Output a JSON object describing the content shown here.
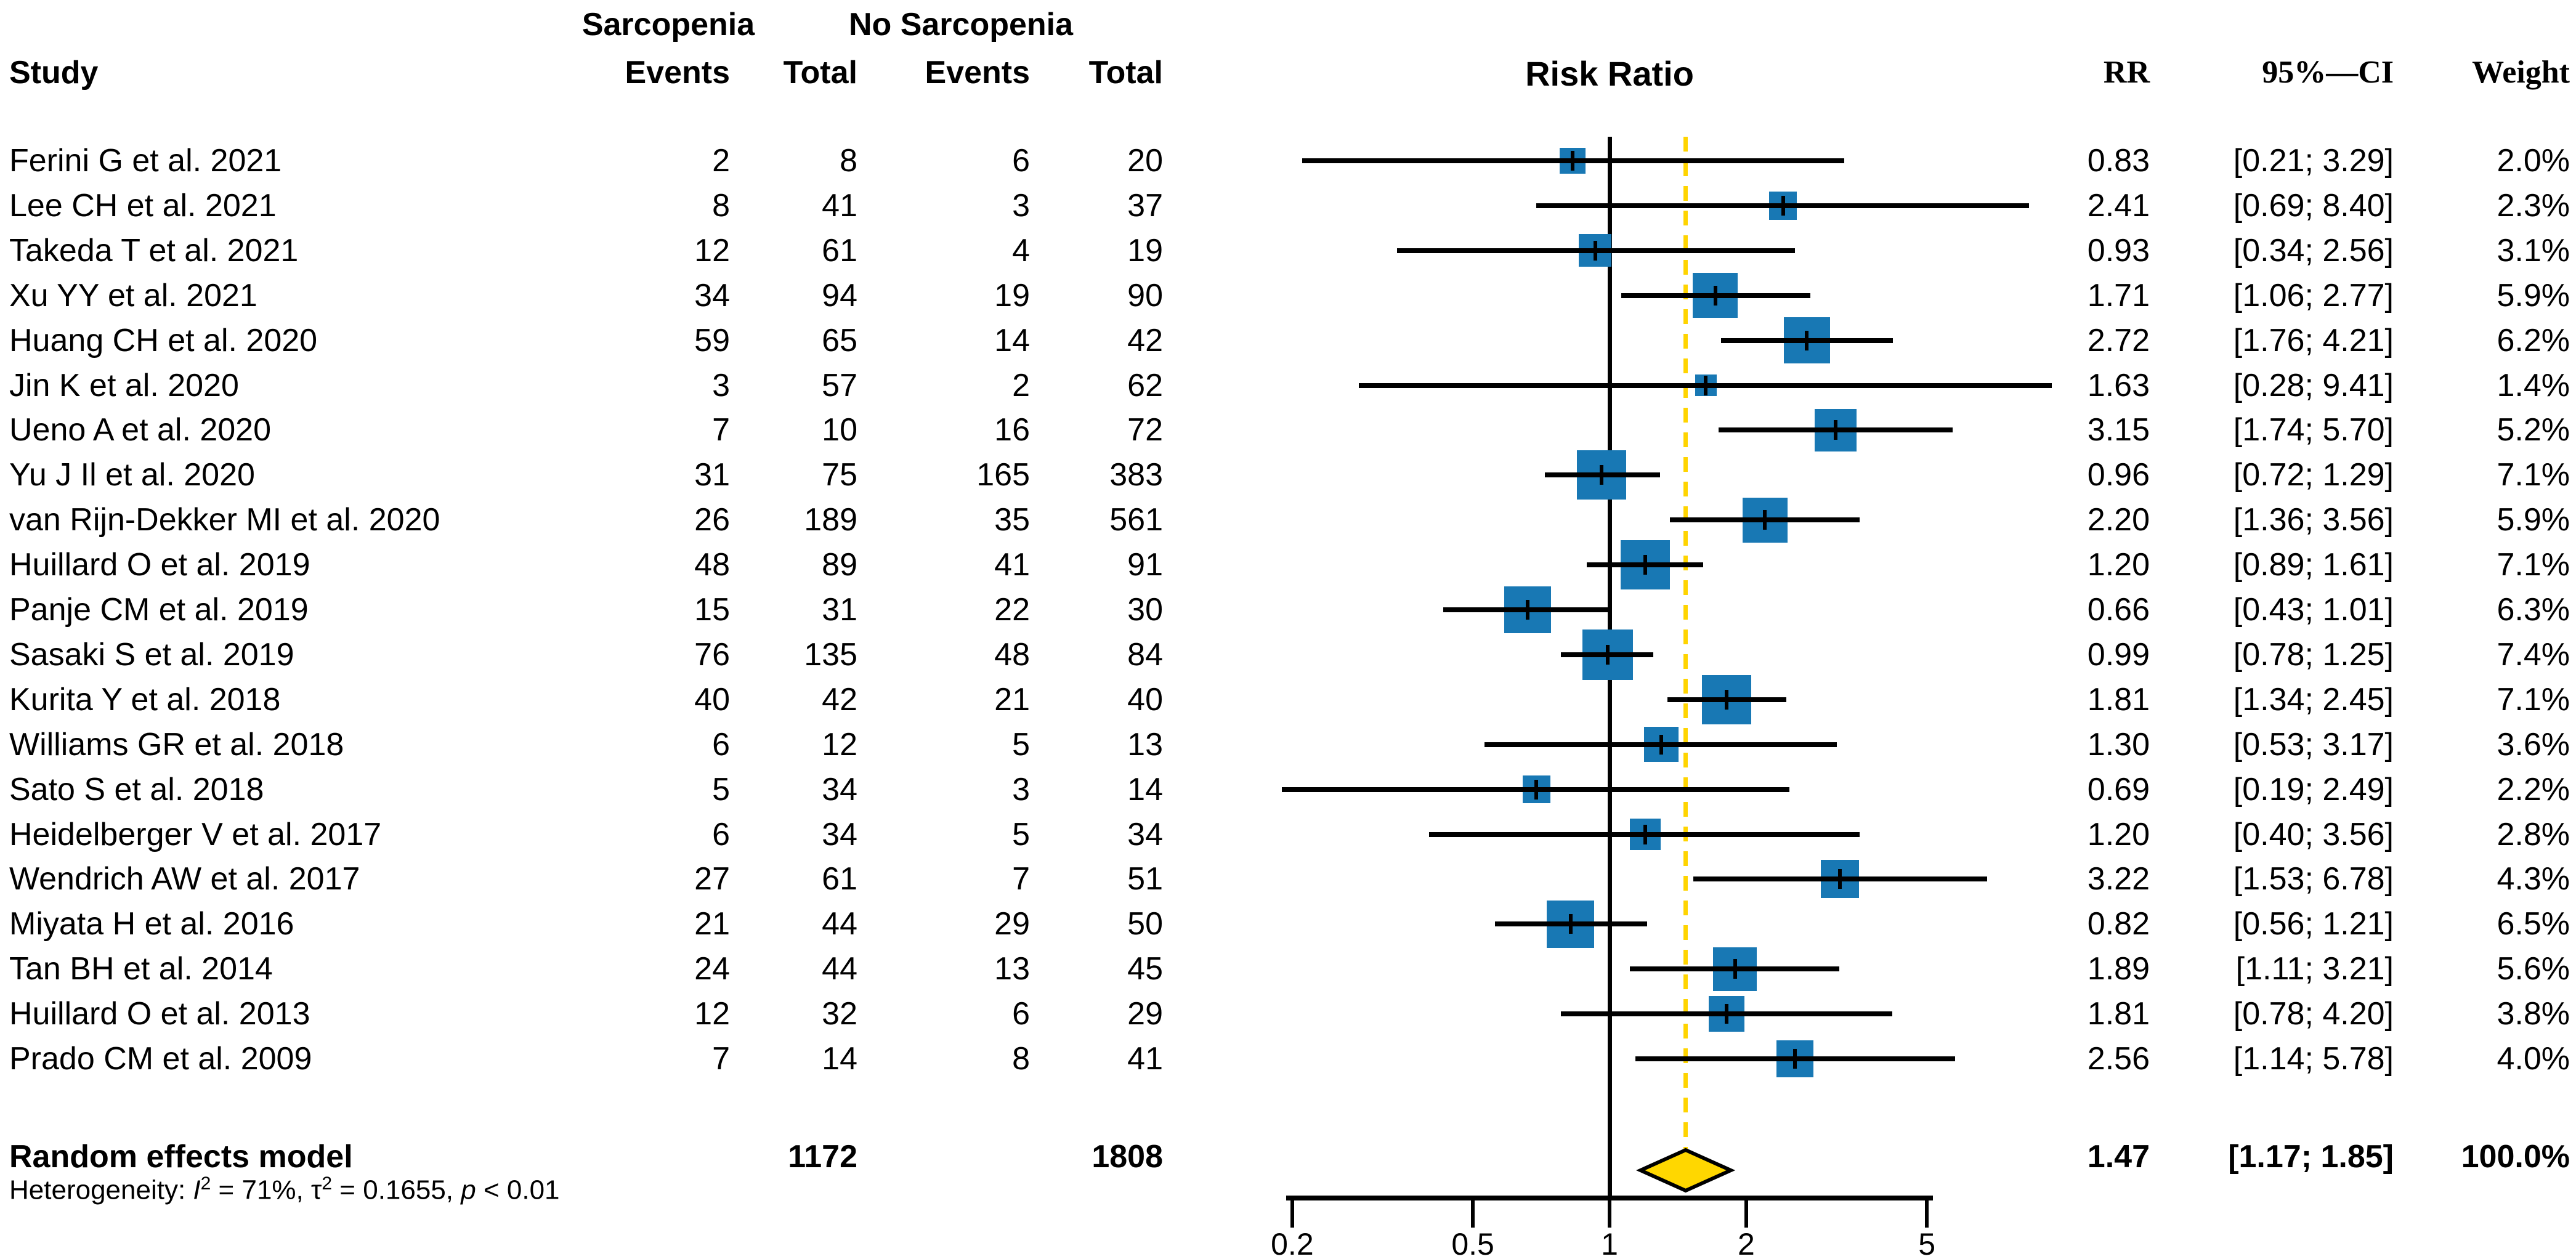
{
  "header": {
    "study": "Study",
    "group1": "Sarcopenia",
    "group2": "No Sarcopenia",
    "events": "Events",
    "total": "Total",
    "plot_title": "Risk Ratio",
    "rr": "RR",
    "ci": "95%—CI",
    "weight": "Weight"
  },
  "heterogeneity": {
    "segments": [
      {
        "t": "Heterogeneity: "
      },
      {
        "t": "I",
        "italic": true
      },
      {
        "t": "2",
        "sup": true
      },
      {
        "t": " = 71%, "
      },
      {
        "t": "τ"
      },
      {
        "t": "2",
        "sup": true
      },
      {
        "t": " = 0.1655, "
      },
      {
        "t": "p",
        "italic": true
      },
      {
        "t": " < 0.01"
      }
    ]
  },
  "chart_data": {
    "type": "forest",
    "effect_measure": "Risk Ratio",
    "x_scale": "log",
    "reference_line": 1,
    "pooled_effect_line": 1.47,
    "axis": {
      "ticks": [
        0.2,
        0.5,
        1,
        2,
        5
      ],
      "tick_labels": [
        "0.2",
        "0.5",
        "1",
        "2",
        "5"
      ]
    },
    "colors": {
      "square": "#1878b4",
      "diamond_fill": "#ffd700",
      "dashed_line": "#ffd400",
      "line": "#000000"
    },
    "studies": [
      {
        "label": "Ferini G et al. 2021",
        "e1": "2",
        "t1": "8",
        "e2": "6",
        "t2": "20",
        "rr": 0.83,
        "lo": 0.21,
        "hi": 3.29,
        "rr_text": "0.83",
        "ci_text": "[0.21; 3.29]",
        "weight": 2.0,
        "weight_text": "2.0%"
      },
      {
        "label": "Lee CH et al. 2021",
        "e1": "8",
        "t1": "41",
        "e2": "3",
        "t2": "37",
        "rr": 2.41,
        "lo": 0.69,
        "hi": 8.4,
        "rr_text": "2.41",
        "ci_text": "[0.69; 8.40]",
        "weight": 2.3,
        "weight_text": "2.3%"
      },
      {
        "label": "Takeda T et al. 2021",
        "e1": "12",
        "t1": "61",
        "e2": "4",
        "t2": "19",
        "rr": 0.93,
        "lo": 0.34,
        "hi": 2.56,
        "rr_text": "0.93",
        "ci_text": "[0.34; 2.56]",
        "weight": 3.1,
        "weight_text": "3.1%"
      },
      {
        "label": "Xu YY et al. 2021",
        "e1": "34",
        "t1": "94",
        "e2": "19",
        "t2": "90",
        "rr": 1.71,
        "lo": 1.06,
        "hi": 2.77,
        "rr_text": "1.71",
        "ci_text": "[1.06; 2.77]",
        "weight": 5.9,
        "weight_text": "5.9%"
      },
      {
        "label": "Huang CH et al. 2020",
        "e1": "59",
        "t1": "65",
        "e2": "14",
        "t2": "42",
        "rr": 2.72,
        "lo": 1.76,
        "hi": 4.21,
        "rr_text": "2.72",
        "ci_text": "[1.76; 4.21]",
        "weight": 6.2,
        "weight_text": "6.2%"
      },
      {
        "label": "Jin K et al. 2020",
        "e1": "3",
        "t1": "57",
        "e2": "2",
        "t2": "62",
        "rr": 1.63,
        "lo": 0.28,
        "hi": 9.41,
        "rr_text": "1.63",
        "ci_text": "[0.28; 9.41]",
        "weight": 1.4,
        "weight_text": "1.4%"
      },
      {
        "label": "Ueno A et al. 2020",
        "e1": "7",
        "t1": "10",
        "e2": "16",
        "t2": "72",
        "rr": 3.15,
        "lo": 1.74,
        "hi": 5.7,
        "rr_text": "3.15",
        "ci_text": "[1.74; 5.70]",
        "weight": 5.2,
        "weight_text": "5.2%"
      },
      {
        "label": "Yu J Il et al. 2020",
        "e1": "31",
        "t1": "75",
        "e2": "165",
        "t2": "383",
        "rr": 0.96,
        "lo": 0.72,
        "hi": 1.29,
        "rr_text": "0.96",
        "ci_text": "[0.72; 1.29]",
        "weight": 7.1,
        "weight_text": "7.1%"
      },
      {
        "label": "van Rijn-Dekker MI et al. 2020",
        "e1": "26",
        "t1": "189",
        "e2": "35",
        "t2": "561",
        "rr": 2.2,
        "lo": 1.36,
        "hi": 3.56,
        "rr_text": "2.20",
        "ci_text": "[1.36; 3.56]",
        "weight": 5.9,
        "weight_text": "5.9%"
      },
      {
        "label": "Huillard O et al. 2019",
        "e1": "48",
        "t1": "89",
        "e2": "41",
        "t2": "91",
        "rr": 1.2,
        "lo": 0.89,
        "hi": 1.61,
        "rr_text": "1.20",
        "ci_text": "[0.89; 1.61]",
        "weight": 7.1,
        "weight_text": "7.1%"
      },
      {
        "label": "Panje CM et al. 2019",
        "e1": "15",
        "t1": "31",
        "e2": "22",
        "t2": "30",
        "rr": 0.66,
        "lo": 0.43,
        "hi": 1.01,
        "rr_text": "0.66",
        "ci_text": "[0.43; 1.01]",
        "weight": 6.3,
        "weight_text": "6.3%"
      },
      {
        "label": "Sasaki S et al. 2019",
        "e1": "76",
        "t1": "135",
        "e2": "48",
        "t2": "84",
        "rr": 0.99,
        "lo": 0.78,
        "hi": 1.25,
        "rr_text": "0.99",
        "ci_text": "[0.78; 1.25]",
        "weight": 7.4,
        "weight_text": "7.4%"
      },
      {
        "label": "Kurita Y et al. 2018",
        "e1": "40",
        "t1": "42",
        "e2": "21",
        "t2": "40",
        "rr": 1.81,
        "lo": 1.34,
        "hi": 2.45,
        "rr_text": "1.81",
        "ci_text": "[1.34; 2.45]",
        "weight": 7.1,
        "weight_text": "7.1%"
      },
      {
        "label": "Williams GR et al. 2018",
        "e1": "6",
        "t1": "12",
        "e2": "5",
        "t2": "13",
        "rr": 1.3,
        "lo": 0.53,
        "hi": 3.17,
        "rr_text": "1.30",
        "ci_text": "[0.53; 3.17]",
        "weight": 3.6,
        "weight_text": "3.6%"
      },
      {
        "label": "Sato S et al. 2018",
        "e1": "5",
        "t1": "34",
        "e2": "3",
        "t2": "14",
        "rr": 0.69,
        "lo": 0.19,
        "hi": 2.49,
        "rr_text": "0.69",
        "ci_text": "[0.19; 2.49]",
        "weight": 2.2,
        "weight_text": "2.2%"
      },
      {
        "label": "Heidelberger V et al. 2017",
        "e1": "6",
        "t1": "34",
        "e2": "5",
        "t2": "34",
        "rr": 1.2,
        "lo": 0.4,
        "hi": 3.56,
        "rr_text": "1.20",
        "ci_text": "[0.40; 3.56]",
        "weight": 2.8,
        "weight_text": "2.8%"
      },
      {
        "label": "Wendrich AW et al. 2017",
        "e1": "27",
        "t1": "61",
        "e2": "7",
        "t2": "51",
        "rr": 3.22,
        "lo": 1.53,
        "hi": 6.78,
        "rr_text": "3.22",
        "ci_text": "[1.53; 6.78]",
        "weight": 4.3,
        "weight_text": "4.3%"
      },
      {
        "label": "Miyata H et al. 2016",
        "e1": "21",
        "t1": "44",
        "e2": "29",
        "t2": "50",
        "rr": 0.82,
        "lo": 0.56,
        "hi": 1.21,
        "rr_text": "0.82",
        "ci_text": "[0.56; 1.21]",
        "weight": 6.5,
        "weight_text": "6.5%"
      },
      {
        "label": "Tan BH et al. 2014",
        "e1": "24",
        "t1": "44",
        "e2": "13",
        "t2": "45",
        "rr": 1.89,
        "lo": 1.11,
        "hi": 3.21,
        "rr_text": "1.89",
        "ci_text": "[1.11; 3.21]",
        "weight": 5.6,
        "weight_text": "5.6%"
      },
      {
        "label": "Huillard O et al. 2013",
        "e1": "12",
        "t1": "32",
        "e2": "6",
        "t2": "29",
        "rr": 1.81,
        "lo": 0.78,
        "hi": 4.2,
        "rr_text": "1.81",
        "ci_text": "[0.78; 4.20]",
        "weight": 3.8,
        "weight_text": "3.8%"
      },
      {
        "label": "Prado CM et al. 2009",
        "e1": "7",
        "t1": "14",
        "e2": "8",
        "t2": "41",
        "rr": 2.56,
        "lo": 1.14,
        "hi": 5.78,
        "rr_text": "2.56",
        "ci_text": "[1.14; 5.78]",
        "weight": 4.0,
        "weight_text": "4.0%"
      }
    ],
    "summary": {
      "label": "Random effects model",
      "t1": "1172",
      "t2": "1808",
      "rr": 1.47,
      "lo": 1.17,
      "hi": 1.85,
      "rr_text": "1.47",
      "ci_text": "[1.17; 1.85]",
      "weight_text": "100.0%"
    }
  }
}
